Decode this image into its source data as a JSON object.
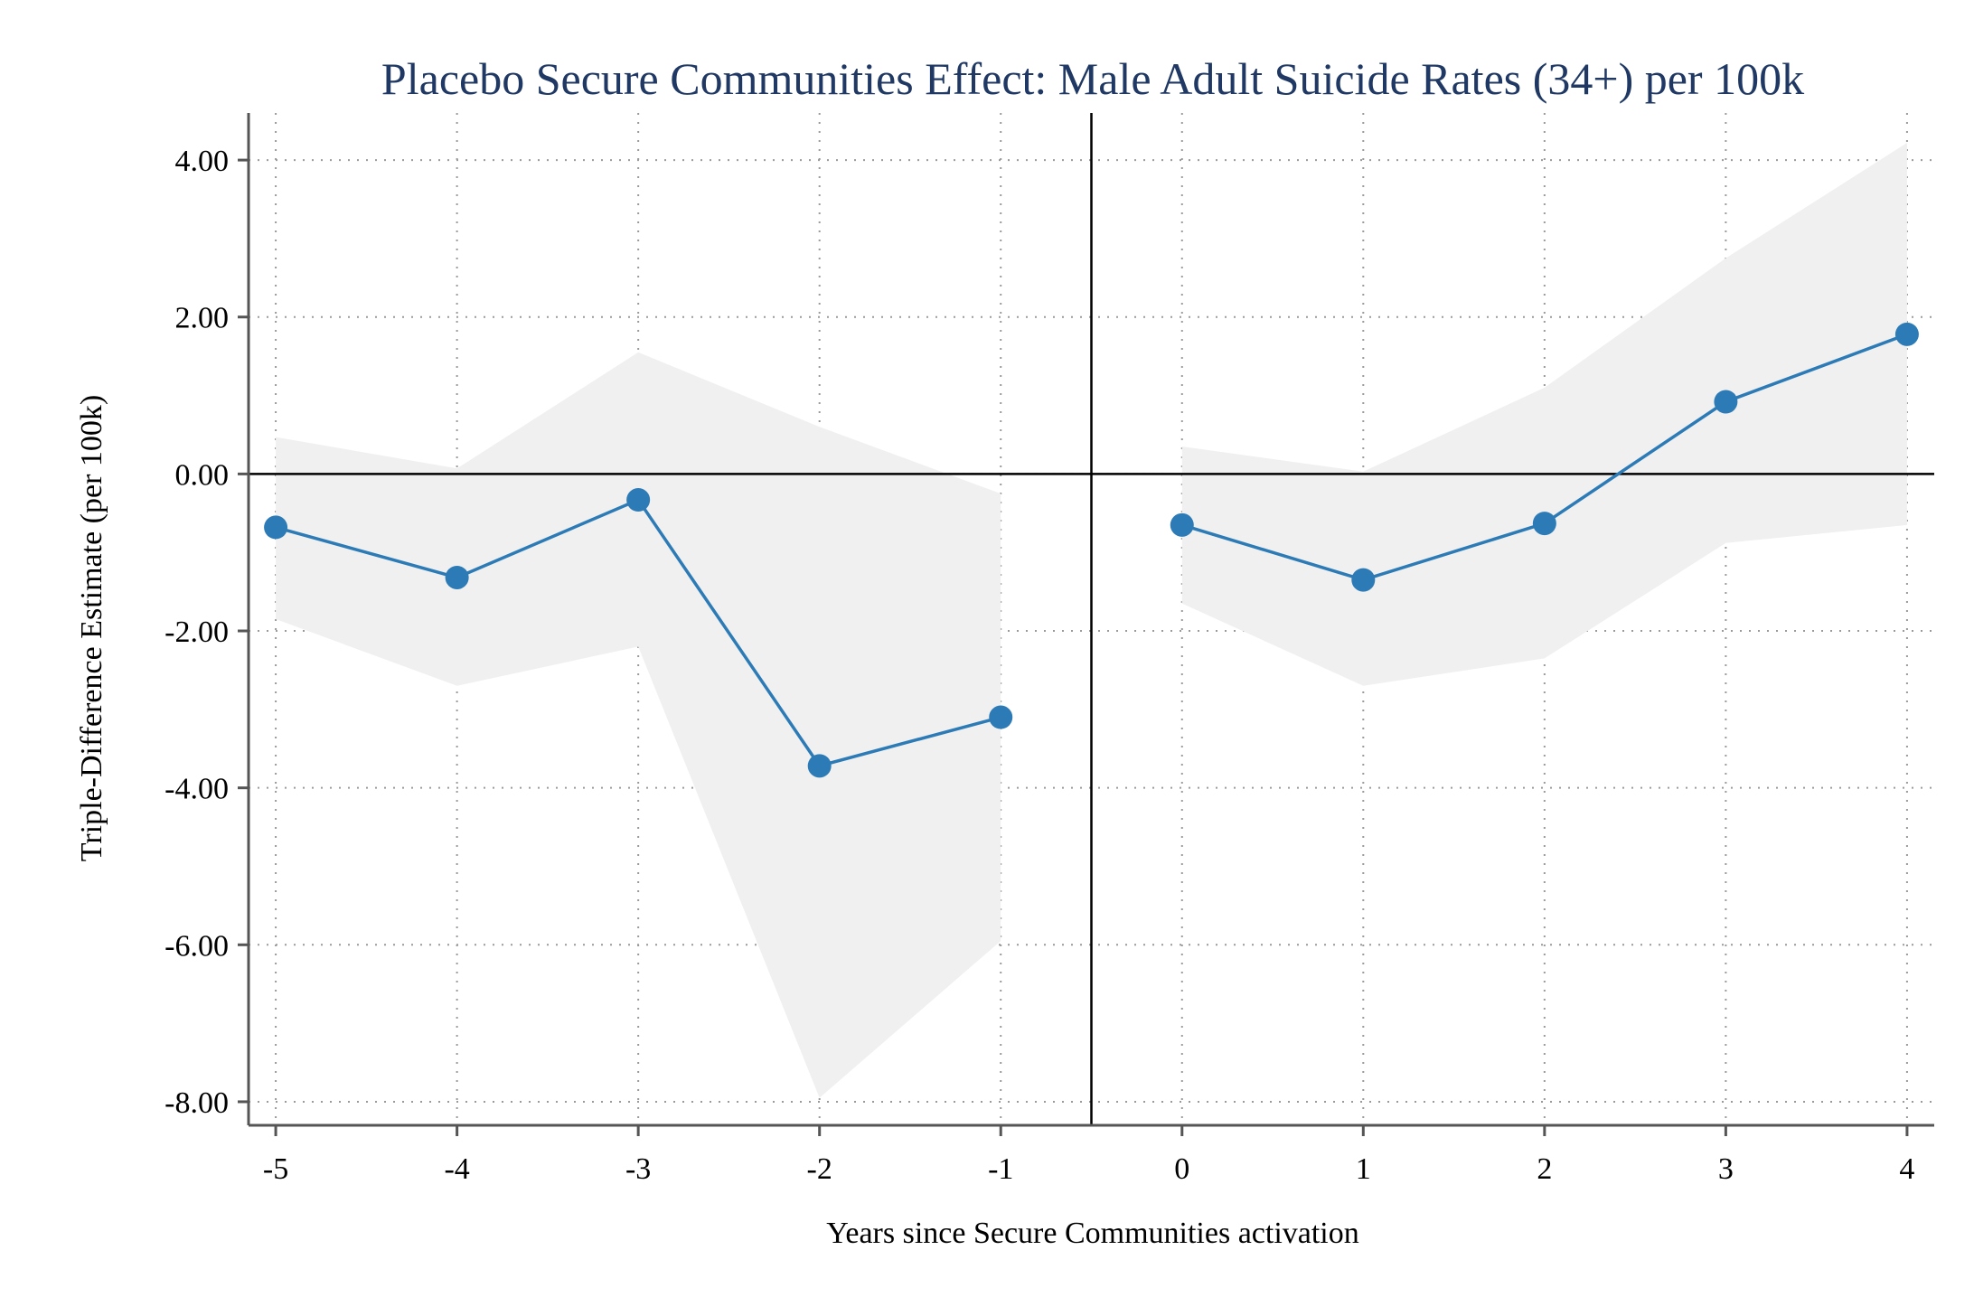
{
  "chart_data": {
    "type": "line",
    "title": "Placebo Secure Communities Effect: Male Adult Suicide Rates (34+) per 100k",
    "xlabel": "Years since Secure Communities activation",
    "ylabel": "Triple-Difference Estimate (per 100k)",
    "xlim": [
      -5.15,
      4.15
    ],
    "ylim": [
      -8.3,
      4.6
    ],
    "x_ticks": [
      "-5",
      "-4",
      "-3",
      "-2",
      "-1",
      "0",
      "1",
      "2",
      "3",
      "4"
    ],
    "y_ticks": [
      "4.00",
      "2.00",
      "0.00",
      "-2.00",
      "-4.00",
      "-6.00",
      "-8.00"
    ],
    "grid": "dotted",
    "reference_lines": {
      "horizontal_y": 0,
      "vertical_x": -0.5
    },
    "colors": {
      "series": "#2c7bb6",
      "ci_band": "#f0f0f0",
      "title": "#1f3864"
    },
    "segments": [
      {
        "x": [
          -5,
          -4,
          -3,
          -2,
          -1
        ],
        "y": [
          -0.68,
          -1.32,
          -0.33,
          -3.72,
          -3.1
        ],
        "ci_low": [
          -1.85,
          -2.7,
          -2.2,
          -7.95,
          -5.95
        ],
        "ci_high": [
          0.47,
          0.07,
          1.55,
          0.6,
          -0.25
        ]
      },
      {
        "x": [
          0,
          1,
          2,
          3,
          4
        ],
        "y": [
          -0.65,
          -1.35,
          -0.63,
          0.92,
          1.78
        ],
        "ci_low": [
          -1.65,
          -2.7,
          -2.35,
          -0.88,
          -0.65
        ],
        "ci_high": [
          0.35,
          0.03,
          1.1,
          2.75,
          4.22
        ]
      }
    ]
  }
}
